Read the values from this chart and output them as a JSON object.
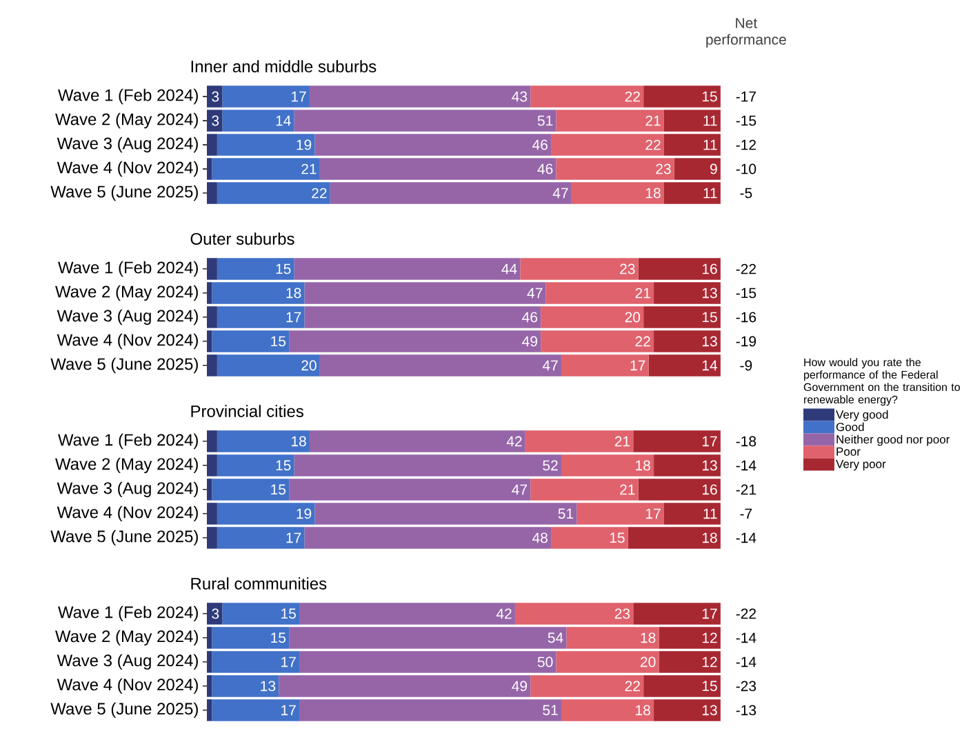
{
  "chart_data": [
    {
      "type": "bar",
      "orientation": "horizontal",
      "stacked": true,
      "title": "Inner and middle suburbs",
      "categories": [
        "Wave 1 (Feb 2024)",
        "Wave 2 (May 2024)",
        "Wave 3 (Aug 2024)",
        "Wave 4 (Nov 2024)",
        "Wave 5 (June 2025)"
      ],
      "series": [
        {
          "color": "#2e3a7a",
          "values": [
            3,
            3,
            2,
            1,
            2
          ],
          "value_labels": [
            "3",
            "3",
            null,
            null,
            null
          ]
        },
        {
          "color": "#4171c8",
          "values": [
            17,
            14,
            19,
            21,
            22
          ],
          "value_labels": [
            "17",
            "14",
            "19",
            "21",
            "22"
          ]
        },
        {
          "color": "#9665a8",
          "values": [
            43,
            51,
            46,
            46,
            47
          ],
          "value_labels": [
            "43",
            "51",
            "46",
            "46",
            "47"
          ]
        },
        {
          "color": "#e0626c",
          "values": [
            22,
            21,
            22,
            23,
            18
          ],
          "value_labels": [
            "22",
            "21",
            "22",
            "23",
            "18"
          ]
        },
        {
          "color": "#a82832",
          "values": [
            15,
            11,
            11,
            9,
            11
          ],
          "value_labels": [
            "15",
            "11",
            "11",
            "9",
            "11"
          ]
        }
      ],
      "annotations": [
        "Net performance",
        "-17",
        "-15",
        "-12",
        "-10",
        "-5"
      ]
    },
    {
      "type": "bar",
      "orientation": "horizontal",
      "stacked": true,
      "title": "Outer suburbs",
      "legend": "right",
      "legend_title": "How would you rate the performance of the Federal Government on the transition to renewable energy?",
      "categories": [
        "Wave 1 (Feb 2024)",
        "Wave 2 (May 2024)",
        "Wave 3 (Aug 2024)",
        "Wave 4 (Nov 2024)",
        "Wave 5 (June 2025)"
      ],
      "series": [
        {
          "name": "Very good",
          "color": "#2e3a7a",
          "values": [
            2,
            1,
            2,
            1,
            2
          ],
          "value_labels": [
            null,
            null,
            null,
            null,
            null
          ]
        },
        {
          "name": "Good",
          "color": "#4171c8",
          "values": [
            15,
            18,
            17,
            15,
            20
          ],
          "value_labels": [
            "15",
            "18",
            "17",
            "15",
            "20"
          ]
        },
        {
          "name": "Neither good nor poor",
          "color": "#9665a8",
          "values": [
            44,
            47,
            46,
            49,
            47
          ],
          "value_labels": [
            "44",
            "47",
            "46",
            "49",
            "47"
          ]
        },
        {
          "name": "Poor",
          "color": "#e0626c",
          "values": [
            23,
            21,
            20,
            22,
            17
          ],
          "value_labels": [
            "23",
            "21",
            "20",
            "22",
            "17"
          ]
        },
        {
          "name": "Very poor",
          "color": "#a82832",
          "values": [
            16,
            13,
            15,
            13,
            14
          ],
          "value_labels": [
            "16",
            "13",
            "15",
            "13",
            "14"
          ]
        }
      ],
      "annotations": [
        "-22",
        "-15",
        "-16",
        "-19",
        "-9"
      ]
    },
    {
      "type": "bar",
      "orientation": "horizontal",
      "stacked": true,
      "title": "Provincial cities",
      "categories": [
        "Wave 1 (Feb 2024)",
        "Wave 2 (May 2024)",
        "Wave 3 (Aug 2024)",
        "Wave 4 (Nov 2024)",
        "Wave 5 (June 2025)"
      ],
      "series": [
        {
          "color": "#2e3a7a",
          "values": [
            2,
            2,
            1,
            2,
            2
          ],
          "value_labels": [
            null,
            null,
            null,
            null,
            null
          ]
        },
        {
          "color": "#4171c8",
          "values": [
            18,
            15,
            15,
            19,
            17
          ],
          "value_labels": [
            "18",
            "15",
            "15",
            "19",
            "17"
          ]
        },
        {
          "color": "#9665a8",
          "values": [
            42,
            52,
            47,
            51,
            48
          ],
          "value_labels": [
            "42",
            "52",
            "47",
            "51",
            "48"
          ]
        },
        {
          "color": "#e0626c",
          "values": [
            21,
            18,
            21,
            17,
            15
          ],
          "value_labels": [
            "21",
            "18",
            "21",
            "17",
            "15"
          ]
        },
        {
          "color": "#a82832",
          "values": [
            17,
            13,
            16,
            11,
            18
          ],
          "value_labels": [
            "17",
            "13",
            "16",
            "11",
            "18"
          ]
        }
      ],
      "annotations": [
        "-18",
        "-14",
        "-21",
        "-7",
        "-14"
      ]
    },
    {
      "type": "bar",
      "orientation": "horizontal",
      "stacked": true,
      "title": "Rural communities",
      "categories": [
        "Wave 1 (Feb 2024)",
        "Wave 2 (May 2024)",
        "Wave 3 (Aug 2024)",
        "Wave 4 (Nov 2024)",
        "Wave 5 (June 2025)"
      ],
      "series": [
        {
          "color": "#2e3a7a",
          "values": [
            3,
            1,
            1,
            1,
            1
          ],
          "value_labels": [
            "3",
            null,
            null,
            null,
            null
          ]
        },
        {
          "color": "#4171c8",
          "values": [
            15,
            15,
            17,
            13,
            17
          ],
          "value_labels": [
            "15",
            "15",
            "17",
            "13",
            "17"
          ]
        },
        {
          "color": "#9665a8",
          "values": [
            42,
            54,
            50,
            49,
            51
          ],
          "value_labels": [
            "42",
            "54",
            "50",
            "49",
            "51"
          ]
        },
        {
          "color": "#e0626c",
          "values": [
            23,
            18,
            20,
            22,
            18
          ],
          "value_labels": [
            "23",
            "18",
            "20",
            "22",
            "18"
          ]
        },
        {
          "color": "#a82832",
          "values": [
            17,
            12,
            12,
            15,
            13
          ],
          "value_labels": [
            "17",
            "12",
            "12",
            "15",
            "13"
          ]
        }
      ],
      "annotations": [
        "-22",
        "-14",
        "-14",
        "-23",
        "-13"
      ]
    }
  ]
}
